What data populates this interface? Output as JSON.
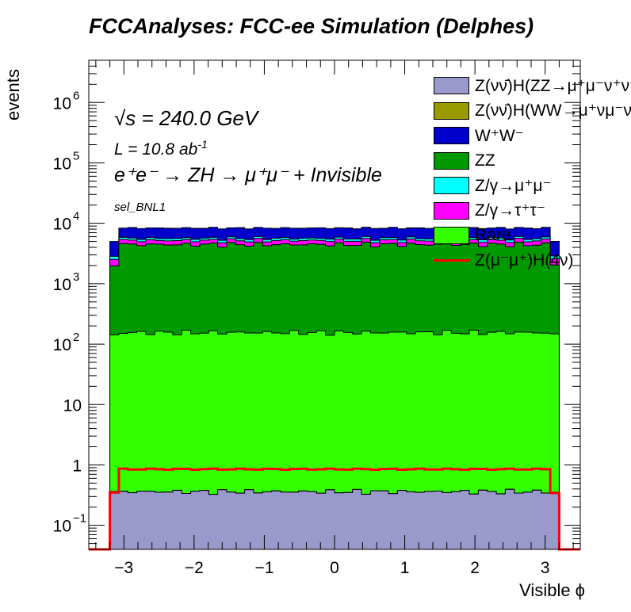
{
  "chart_data": {
    "type": "stacked_histogram",
    "title": "FCCAnalyses: FCC-ee Simulation (Delphes)",
    "xlabel": "Visible ϕ",
    "ylabel": "events",
    "xlim": [
      -3.5,
      3.5
    ],
    "ylim": [
      0.04,
      5000000
    ],
    "yscale": "log",
    "bins": 50,
    "bin_range": [
      -3.2,
      3.2
    ],
    "x_ticks": [
      -3,
      -2,
      -1,
      0,
      1,
      2,
      3
    ],
    "x_tick_labels": [
      "−3",
      "−2",
      "−1",
      "0",
      "1",
      "2",
      "3"
    ],
    "y_ticks": [
      {
        "value": 0.1,
        "base": "10",
        "exp": "−1"
      },
      {
        "value": 1,
        "base": "1",
        "exp": ""
      },
      {
        "value": 10,
        "base": "10",
        "exp": ""
      },
      {
        "value": 100,
        "base": "10",
        "exp": "2"
      },
      {
        "value": 1000,
        "base": "10",
        "exp": "3"
      },
      {
        "value": 10000,
        "base": "10",
        "exp": "4"
      },
      {
        "value": 100000,
        "base": "10",
        "exp": "5"
      },
      {
        "value": 1000000,
        "base": "10",
        "exp": "6"
      }
    ],
    "stack_order": [
      "ZvvH_ZZ",
      "ZvvH_WW",
      "Rare",
      "ZZ",
      "tautau",
      "mumu",
      "WW"
    ],
    "series": [
      {
        "key": "ZvvH_ZZ",
        "name": "Z(νν̄)H(ZZ→μ⁺μ⁻ν⁺ν⁻)",
        "color": "#9999cc",
        "level": 0.36,
        "edge_level": 0.35
      },
      {
        "key": "ZvvH_WW",
        "name": "Z(νν̄)H(WW→μ⁺νμ⁻ν)",
        "color": "#999900",
        "level": 0.001,
        "edge_level": 0.001
      },
      {
        "key": "WW",
        "name": "W⁺W⁻",
        "color": "#0000cc",
        "level": 2700,
        "edge_level": 2000
      },
      {
        "key": "ZZ",
        "name": "ZZ",
        "color": "#009900",
        "level": 4300,
        "edge_level": 2000
      },
      {
        "key": "mumu",
        "name": "Z/γ→μ⁺μ⁻",
        "color": "#00ffff",
        "level": 440,
        "edge_level": 300
      },
      {
        "key": "tautau",
        "name": "Z/γ→τ⁺τ⁻",
        "color": "#ff00ff",
        "level": 740,
        "edge_level": 600
      },
      {
        "key": "Rare",
        "name": "Rare",
        "color": "#33ff00",
        "level": 155,
        "edge_level": 140
      }
    ],
    "signal": {
      "name": "Z(μ⁻μ⁺)H(4ν)",
      "color": "#ff0000",
      "level": 0.85,
      "edge_level": 0.35
    },
    "legend_position": "top-right"
  },
  "annotations": {
    "sqrt_s": "√s",
    "sqrt_s_value": " = 240.0 GeV",
    "lumi": "L = 10.8 ab",
    "lumi_exp": "-1",
    "process": "e⁺e⁻ → ZH → μ⁺μ⁻ + Invisible",
    "selection": "sel_BNL1"
  }
}
